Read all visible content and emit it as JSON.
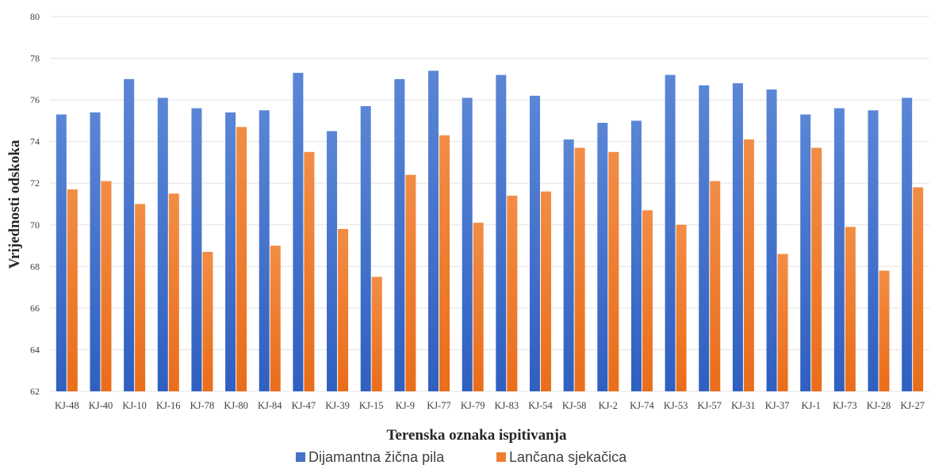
{
  "chart_data": {
    "type": "bar",
    "title": "",
    "xlabel": "Terenska oznaka ispitivanja",
    "ylabel": "Vrijednosti odskoka",
    "ylim": [
      62,
      80
    ],
    "yticks": [
      62,
      64,
      66,
      68,
      70,
      72,
      74,
      76,
      78,
      80
    ],
    "grid": true,
    "legend_position": "bottom",
    "categories": [
      "KJ-48",
      "KJ-40",
      "KJ-10",
      "KJ-16",
      "KJ-78",
      "KJ-80",
      "KJ-84",
      "KJ-47",
      "KJ-39",
      "KJ-15",
      "KJ-9",
      "KJ-77",
      "KJ-79",
      "KJ-83",
      "KJ-54",
      "KJ-58",
      "KJ-2",
      "KJ-74",
      "KJ-53",
      "KJ-57",
      "KJ-31",
      "KJ-37",
      "KJ-1",
      "KJ-73",
      "KJ-28",
      "KJ-27"
    ],
    "series": [
      {
        "name": "Dijamantna žična pila",
        "color": "#4472C4",
        "values": [
          75.3,
          75.4,
          77.0,
          76.1,
          75.6,
          75.4,
          75.5,
          77.3,
          74.5,
          75.7,
          77.0,
          77.4,
          76.1,
          77.2,
          76.2,
          74.1,
          74.9,
          75.0,
          77.2,
          76.7,
          76.8,
          76.5,
          75.3,
          75.6,
          75.5,
          76.1
        ]
      },
      {
        "name": "Lančana sjekačica",
        "color": "#ED7D31",
        "values": [
          71.7,
          72.1,
          71.0,
          71.5,
          68.7,
          74.7,
          69.0,
          73.5,
          69.8,
          67.5,
          72.4,
          74.3,
          70.1,
          71.4,
          71.6,
          73.7,
          73.5,
          70.7,
          70.0,
          72.1,
          74.1,
          68.6,
          73.7,
          69.9,
          67.8,
          71.8
        ]
      }
    ]
  }
}
